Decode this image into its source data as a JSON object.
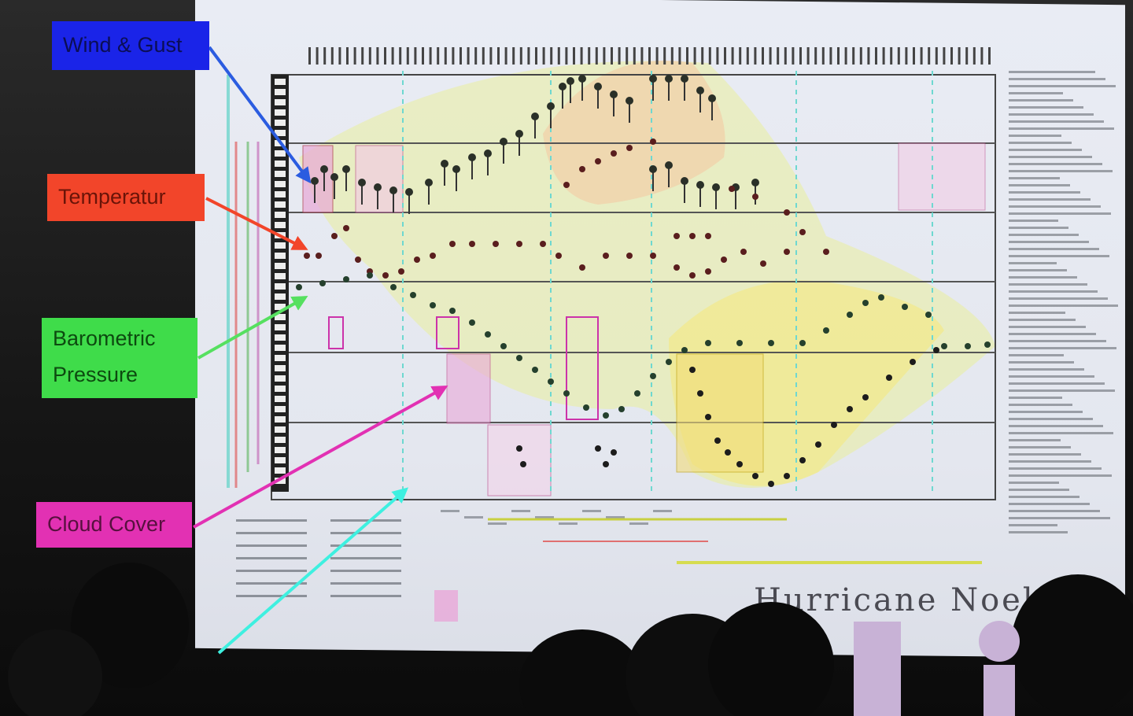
{
  "callouts": {
    "wind": "Wind & Gust",
    "temperature": "Temperatur",
    "pressure_line1": "Barometric",
    "pressure_line2": "Pressure",
    "cloud": "Cloud Cover"
  },
  "sketch": {
    "title": "Hurricane Noel"
  },
  "colors": {
    "wind": "#1a24e8",
    "temperature": "#f2452a",
    "pressure": "#3fdc4a",
    "cloud": "#e231b3",
    "extra_arrow": "#3ef0e0",
    "screen": "#e7eaf2",
    "ink": "#2c3a33"
  },
  "icons": {
    "arrow": "arrow-icon",
    "data_dot": "dot-icon"
  }
}
